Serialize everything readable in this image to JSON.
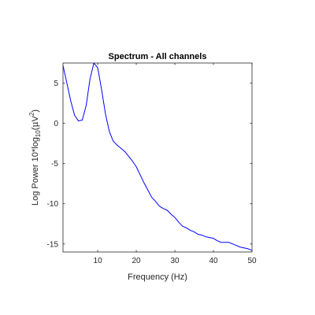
{
  "chart_data": {
    "type": "line",
    "title": "Spectrum - All channels",
    "xlabel": "Frequency (Hz)",
    "ylabel": {
      "prefix": "Log Power 10*log",
      "sub": "10",
      "open": "(",
      "mu": "μ",
      "unit": "V",
      "sup": "2",
      "close": ")"
    },
    "xlim": [
      1,
      50
    ],
    "ylim": [
      -16,
      7.5
    ],
    "xticks": [
      10,
      20,
      30,
      40,
      50
    ],
    "yticks": [
      5,
      0,
      -5,
      -10,
      -15
    ],
    "grid": false,
    "line_color": "#0000ff",
    "axis_color": "#262626",
    "series": [
      {
        "x": [
          1,
          2,
          3,
          4,
          5,
          6,
          7,
          8,
          9,
          10,
          11,
          12,
          13,
          14,
          15,
          16,
          17,
          18,
          19,
          20,
          21,
          22,
          23,
          24,
          25,
          26,
          27,
          28,
          29,
          30,
          31,
          32,
          33,
          34,
          35,
          36,
          37,
          38,
          39,
          40,
          41,
          42,
          43,
          44,
          45,
          46,
          47,
          48,
          49,
          50
        ],
        "y": [
          7.2,
          5.0,
          2.8,
          1.0,
          0.3,
          0.4,
          2.2,
          5.5,
          7.5,
          6.9,
          4.2,
          1.2,
          -1.0,
          -2.2,
          -2.7,
          -3.1,
          -3.5,
          -4.1,
          -4.7,
          -5.4,
          -6.4,
          -7.4,
          -8.3,
          -9.2,
          -9.7,
          -10.3,
          -10.6,
          -10.8,
          -11.3,
          -11.7,
          -12.3,
          -12.8,
          -13.0,
          -13.3,
          -13.5,
          -13.8,
          -13.9,
          -14.1,
          -14.2,
          -14.3,
          -14.6,
          -14.8,
          -14.8,
          -14.8,
          -15.0,
          -15.2,
          -15.4,
          -15.5,
          -15.6,
          -15.8
        ]
      }
    ]
  }
}
